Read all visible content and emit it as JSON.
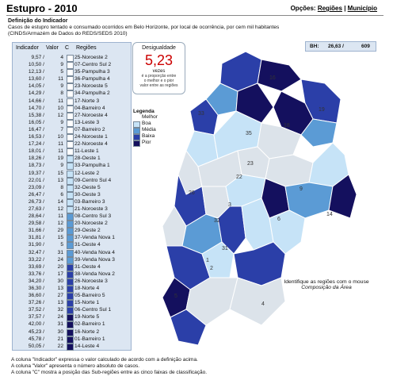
{
  "header": {
    "title": "Estupro - 2010",
    "options_label": "Opções:",
    "opt_regioes": "Regiões",
    "opt_sep": "|",
    "opt_municipio": "Município"
  },
  "definition": {
    "title": "Definição do Indicador",
    "text_line1": "Casos de estupro tentado e consumado ocorridos em Belo Horizonte, por local de ocorrência, por cem mil habitantes",
    "text_line2": "(CINDS/Armazém de Dados do REDS/SEDS 2010)"
  },
  "table": {
    "col_indicador": "Indicador",
    "col_valor": "Valor",
    "col_c": "C",
    "col_regioes": "Regiões",
    "rows": [
      {
        "ind": "9,57 /",
        "val": "4",
        "reg": "25-Noroeste 2",
        "c": 0
      },
      {
        "ind": "10,50 /",
        "val": "9",
        "reg": "07-Centro Sul 2",
        "c": 0
      },
      {
        "ind": "12,13 /",
        "val": "5",
        "reg": "35-Pampulha 3",
        "c": 0
      },
      {
        "ind": "13,60 /",
        "val": "11",
        "reg": "36-Pampulha 4",
        "c": 0
      },
      {
        "ind": "14,05 /",
        "val": "9",
        "reg": "23-Noroeste 5",
        "c": 0
      },
      {
        "ind": "14,29 /",
        "val": "8",
        "reg": "34-Pampulha 2",
        "c": 0
      },
      {
        "ind": "14,66 /",
        "val": "11",
        "reg": "17-Norte 3",
        "c": 0
      },
      {
        "ind": "14,70 /",
        "val": "10",
        "reg": "04-Barreiro 4",
        "c": 0
      },
      {
        "ind": "15,38 /",
        "val": "12",
        "reg": "27-Noroeste 4",
        "c": 0
      },
      {
        "ind": "16,05 /",
        "val": "9",
        "reg": "13-Leste 3",
        "c": 0
      },
      {
        "ind": "16,47 /",
        "val": "7",
        "reg": "07-Barreiro 2",
        "c": 0
      },
      {
        "ind": "16,53 /",
        "val": "10",
        "reg": "24-Noroeste 1",
        "c": 0
      },
      {
        "ind": "17,24 /",
        "val": "11",
        "reg": "22-Noroeste 4",
        "c": 0
      },
      {
        "ind": "18,01 /",
        "val": "11",
        "reg": "11-Leste 1",
        "c": 0
      },
      {
        "ind": "18,26 /",
        "val": "19",
        "reg": "28-Oeste 1",
        "c": 1
      },
      {
        "ind": "18,73 /",
        "val": "9",
        "reg": "33-Pampulha 1",
        "c": 1
      },
      {
        "ind": "19,37 /",
        "val": "15",
        "reg": "12-Leste 2",
        "c": 1
      },
      {
        "ind": "22,01 /",
        "val": "13",
        "reg": "09-Centro Sul 4",
        "c": 1
      },
      {
        "ind": "23,09 /",
        "val": "8",
        "reg": "32-Oeste 5",
        "c": 1
      },
      {
        "ind": "26,47 /",
        "val": "6",
        "reg": "30-Oeste 3",
        "c": 1
      },
      {
        "ind": "26,73 /",
        "val": "14",
        "reg": "03-Barreiro 3",
        "c": 1
      },
      {
        "ind": "27,63 /",
        "val": "12",
        "reg": "21-Noroeste 3",
        "c": 1
      },
      {
        "ind": "28,64 /",
        "val": "11",
        "reg": "08-Centro Sul 3",
        "c": 2
      },
      {
        "ind": "29,58 /",
        "val": "12",
        "reg": "20-Noroeste 2",
        "c": 2
      },
      {
        "ind": "31,66 /",
        "val": "29",
        "reg": "29-Oeste 2",
        "c": 2
      },
      {
        "ind": "31,81 /",
        "val": "15",
        "reg": "37-Venda Nova 1",
        "c": 2
      },
      {
        "ind": "31,90 /",
        "val": "5",
        "reg": "31-Oeste 4",
        "c": 2
      },
      {
        "ind": "32,47 /",
        "val": "31",
        "reg": "40-Venda Nova 4",
        "c": 2
      },
      {
        "ind": "33,22 /",
        "val": "24",
        "reg": "39-Venda Nova 3",
        "c": 2
      },
      {
        "ind": "33,69 /",
        "val": "20",
        "reg": "31-Oeste 4",
        "c": 3
      },
      {
        "ind": "33,76 /",
        "val": "17",
        "reg": "38-Venda Nova 2",
        "c": 3
      },
      {
        "ind": "34,20 /",
        "val": "30",
        "reg": "26-Noroeste 3",
        "c": 3
      },
      {
        "ind": "36,30 /",
        "val": "13",
        "reg": "18-Norte 4",
        "c": 3
      },
      {
        "ind": "36,60 /",
        "val": "27",
        "reg": "05-Barreiro 5",
        "c": 3
      },
      {
        "ind": "37,26 /",
        "val": "13",
        "reg": "15-Norte 1",
        "c": 3
      },
      {
        "ind": "37,52 /",
        "val": "32",
        "reg": "06-Centro Sul 1",
        "c": 3
      },
      {
        "ind": "37,57 /",
        "val": "24",
        "reg": "19-Norte 5",
        "c": 4
      },
      {
        "ind": "42,00 /",
        "val": "31",
        "reg": "02-Barreiro 1",
        "c": 4
      },
      {
        "ind": "45,23 /",
        "val": "30",
        "reg": "16-Norte 2",
        "c": 4
      },
      {
        "ind": "45,78 /",
        "val": "21",
        "reg": "01-Barreiro 1",
        "c": 4
      },
      {
        "ind": "50,05 /",
        "val": "22",
        "reg": "14-Leste 4",
        "c": 4
      }
    ]
  },
  "desigualdade": {
    "label": "Desigualdade",
    "value": "5,23",
    "unit": "vezes",
    "note1": "é a proporção entre",
    "note2": "o melhor e o pior",
    "note3": "valor entre as regiões"
  },
  "legend": {
    "title": "Legenda",
    "melhor": "Melhor",
    "items": [
      {
        "label": "Boa",
        "color": "#c6e3f7"
      },
      {
        "label": "Média",
        "color": "#5b9bd5"
      },
      {
        "label": "Baixa",
        "color": "#2b3fa8"
      },
      {
        "label": "Pior",
        "color": "#14105e"
      }
    ],
    "melhor_color": "#ffffff"
  },
  "bh": {
    "label": "BH:",
    "value": "26,63 /",
    "count": "609"
  },
  "map": {
    "hint1": "Identifique as regiões com o mouse",
    "hint2": "Composição da Área",
    "labels": [
      "1",
      "2",
      "3",
      "4",
      "5",
      "6",
      "7",
      "8",
      "9",
      "10",
      "11",
      "12",
      "13",
      "14",
      "15",
      "16",
      "17",
      "18",
      "19",
      "20",
      "21",
      "22",
      "23",
      "24",
      "25",
      "26",
      "27",
      "28",
      "29",
      "30",
      "31",
      "32",
      "33",
      "34",
      "35",
      "36",
      "37",
      "38",
      "39",
      "40"
    ]
  },
  "notes": {
    "line1": "A coluna \"Indicador\" expressa o valor calculado de acordo com a definição acima.",
    "line2": "A coluna \"Valor\" apresenta o número absoluto de casos.",
    "line3": "A coluna \"C\" mostra a posição das Sub-regiões entre as cinco faixas de classificação."
  },
  "colors": {
    "class": [
      "#ffffff",
      "#c6e3f7",
      "#5b9bd5",
      "#2b3fa8",
      "#14105e"
    ],
    "panel": "#dce6f2"
  }
}
